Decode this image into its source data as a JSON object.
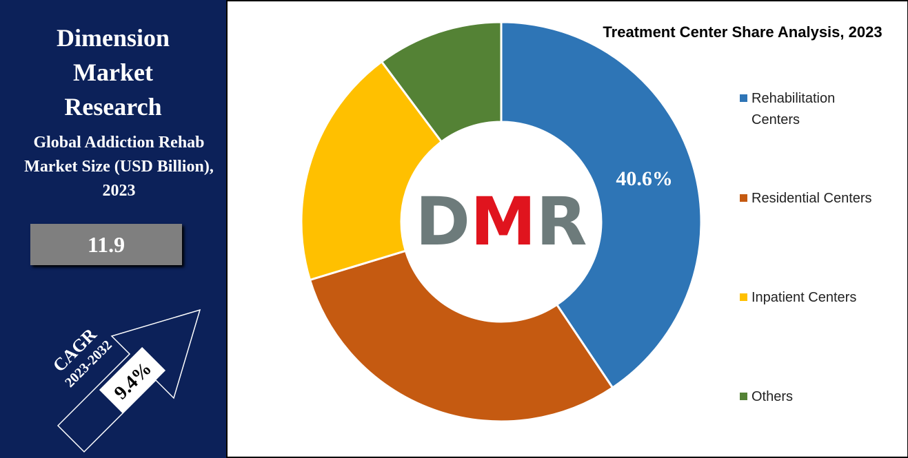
{
  "panel": {
    "brand": "Dimension Market Research",
    "subtitle": "Global Addiction Rehab Market Size (USD Billion), 2023",
    "market_size": 11.9,
    "cagr_label": "CAGR",
    "cagr_period": "2023-2032",
    "cagr_value": "9.4%"
  },
  "chart_data": {
    "type": "donut",
    "title": "Treatment Center Share Analysis, 2023",
    "categories": [
      "Rehabilitation Centers",
      "Residential Centers",
      "Inpatient Centers",
      "Others"
    ],
    "values": [
      40.6,
      29.7,
      19.5,
      10.2
    ],
    "value_labels": [
      "40.6%",
      null,
      null,
      null
    ],
    "colors": [
      "#2e75b6",
      "#c55a11",
      "#ffc000",
      "#548235"
    ],
    "center_logo": [
      "D",
      "M",
      "R"
    ],
    "legend": "right"
  }
}
